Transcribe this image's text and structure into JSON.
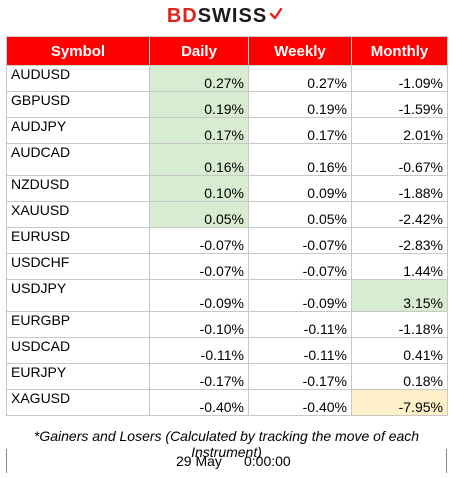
{
  "brand": {
    "part1": "BD",
    "part2": "SWISS"
  },
  "table": {
    "headers": [
      "Symbol",
      "Daily",
      "Weekly",
      "Monthly"
    ],
    "rows": [
      {
        "symbol": "AUDUSD",
        "daily": "0.27%",
        "weekly": "0.27%",
        "monthly": "-1.09%"
      },
      {
        "symbol": "GBPUSD",
        "daily": "0.19%",
        "weekly": "0.19%",
        "monthly": "-1.59%"
      },
      {
        "symbol": "AUDJPY",
        "daily": "0.17%",
        "weekly": "0.17%",
        "monthly": "2.01%"
      },
      {
        "symbol": "AUDCAD",
        "daily": "0.16%",
        "weekly": "0.16%",
        "monthly": "-0.67%"
      },
      {
        "symbol": "NZDUSD",
        "daily": "0.10%",
        "weekly": "0.09%",
        "monthly": "-1.88%"
      },
      {
        "symbol": "XAUUSD",
        "daily": "0.05%",
        "weekly": "0.05%",
        "monthly": "-2.42%"
      },
      {
        "symbol": "EURUSD",
        "daily": "-0.07%",
        "weekly": "-0.07%",
        "monthly": "-2.83%"
      },
      {
        "symbol": "USDCHF",
        "daily": "-0.07%",
        "weekly": "-0.07%",
        "monthly": "1.44%"
      },
      {
        "symbol": "USDJPY",
        "daily": "-0.09%",
        "weekly": "-0.09%",
        "monthly": "3.15%"
      },
      {
        "symbol": "EURGBP",
        "daily": "-0.10%",
        "weekly": "-0.11%",
        "monthly": "-1.18%"
      },
      {
        "symbol": "USDCAD",
        "daily": "-0.11%",
        "weekly": "-0.11%",
        "monthly": "0.41%"
      },
      {
        "symbol": "EURJPY",
        "daily": "-0.17%",
        "weekly": "-0.17%",
        "monthly": "0.18%"
      },
      {
        "symbol": "XAGUSD",
        "daily": "-0.40%",
        "weekly": "-0.40%",
        "monthly": "-7.95%"
      }
    ]
  },
  "colors": {
    "header_bg": "#ff0000",
    "gainer_bg": "#d8ecd2",
    "loser_bg": "#fdf0c8"
  },
  "footnote": "*Gainers and Losers (Calculated by tracking the move of each Instrument)",
  "date": "29 May",
  "time": "0:00:00"
}
